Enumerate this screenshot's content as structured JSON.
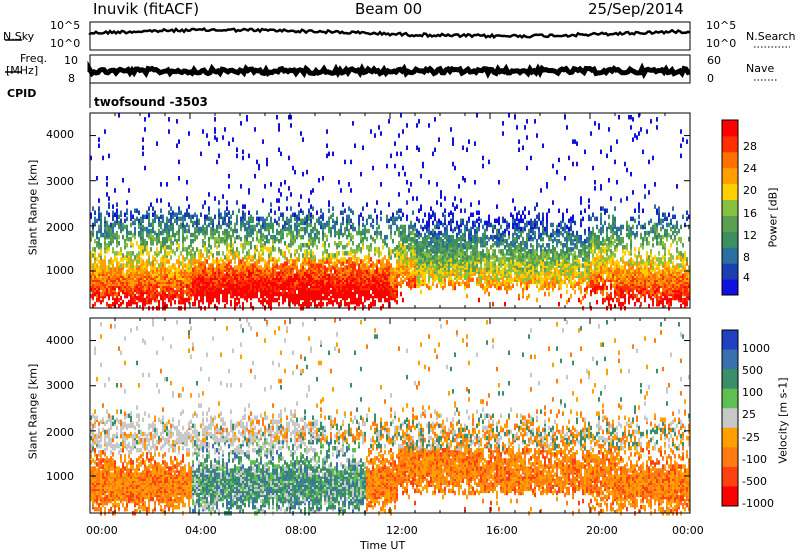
{
  "header": {
    "station": "Inuvik (fitACF)",
    "beam": "Beam 00",
    "date": "25/Sep/2014"
  },
  "top_strips": {
    "nsky_label": "N.Sky",
    "nsky_ticks": [
      "10^5",
      "10^0"
    ],
    "nsearch_label": "N.Search",
    "nsearch_ticks": [
      "10^5",
      "10^0"
    ],
    "freq_label_1": "Freq.",
    "freq_label_2": "[MHz]",
    "freq_ticks_left": [
      "10",
      "8"
    ],
    "nave_label": "Nave",
    "nave_ticks": [
      "60",
      "0"
    ],
    "cpid_label": "CPID",
    "cpid_name": "twofsound -3503"
  },
  "colors": {
    "power": [
      "#1010e0",
      "#1a3fb0",
      "#2a6fa0",
      "#3c9060",
      "#5aa050",
      "#88c040",
      "#ffd000",
      "#ffa000",
      "#ff7000",
      "#ff3000",
      "#ff0000"
    ],
    "velocity": [
      "#2040c0",
      "#3a70b0",
      "#3c8e68",
      "#5ec050",
      "#c8c8c8",
      "#ffa000",
      "#ff7a10",
      "#ff4010",
      "#ff0000"
    ],
    "gray_scatter": "#c0c0c0"
  },
  "chart_data": [
    {
      "type": "heatmap",
      "title": "Power",
      "ylabel": "Slant Range [km]",
      "y_ticks": [
        1000,
        2000,
        3000,
        4000
      ],
      "ylim": [
        180,
        4500
      ],
      "colorbar_label": "Power [dB]",
      "colorbar_ticks": [
        "4",
        "8",
        "12",
        "16",
        "20",
        "24",
        "28"
      ],
      "color_range": [
        0,
        31
      ]
    },
    {
      "type": "heatmap",
      "title": "Velocity",
      "ylabel": "Slant Range [km]",
      "xlabel": "Time UT",
      "x_ticks": [
        "00:00",
        "04:00",
        "08:00",
        "12:00",
        "16:00",
        "20:00",
        "00:00"
      ],
      "xlim_hours": [
        0,
        24
      ],
      "y_ticks": [
        1000,
        2000,
        3000,
        4000
      ],
      "ylim": [
        180,
        4500
      ],
      "colorbar_label": "Velocity [m s-1]",
      "colorbar_ticks": [
        "1000",
        "500",
        "100",
        "25",
        "-25",
        "-100",
        "-500",
        "-1000"
      ]
    }
  ]
}
